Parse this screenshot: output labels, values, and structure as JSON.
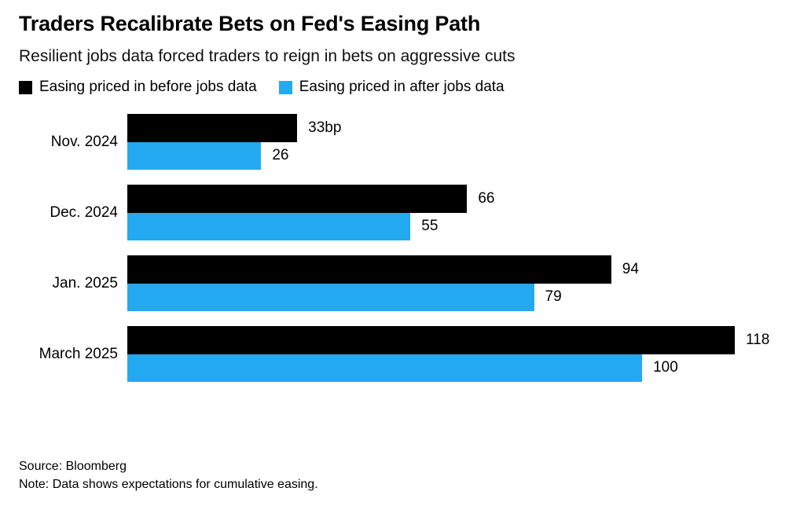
{
  "header": {
    "title": "Traders Recalibrate Bets on Fed's Easing Path",
    "subtitle": "Resilient jobs data forced traders to reign in bets on aggressive cuts"
  },
  "legend": [
    {
      "label": "Easing priced in before jobs data",
      "color": "#000000"
    },
    {
      "label": "Easing priced in after jobs data",
      "color": "#23A9F0"
    }
  ],
  "chart_data": {
    "type": "bar",
    "orientation": "horizontal",
    "title": "Traders Recalibrate Bets on Fed's Easing Path",
    "subtitle": "Resilient jobs data forced traders to reign in bets on aggressive cuts",
    "unit": "bp",
    "categories": [
      "Nov. 2024",
      "Dec. 2024",
      "Jan. 2025",
      "March 2025"
    ],
    "series": [
      {
        "name": "Easing priced in before jobs data",
        "color": "#000000",
        "values": [
          33,
          66,
          94,
          118
        ],
        "value_labels": [
          "33bp",
          "66",
          "94",
          "118"
        ]
      },
      {
        "name": "Easing priced in after jobs data",
        "color": "#23A9F0",
        "values": [
          26,
          55,
          79,
          100
        ],
        "value_labels": [
          "26",
          "55",
          "79",
          "100"
        ]
      }
    ],
    "xlim": [
      0,
      118
    ],
    "grid": false,
    "legend_position": "top",
    "value_labels_shown": true
  },
  "footer": {
    "source": "Source: Bloomberg",
    "note": "Note: Data shows expectations for cumulative easing."
  }
}
